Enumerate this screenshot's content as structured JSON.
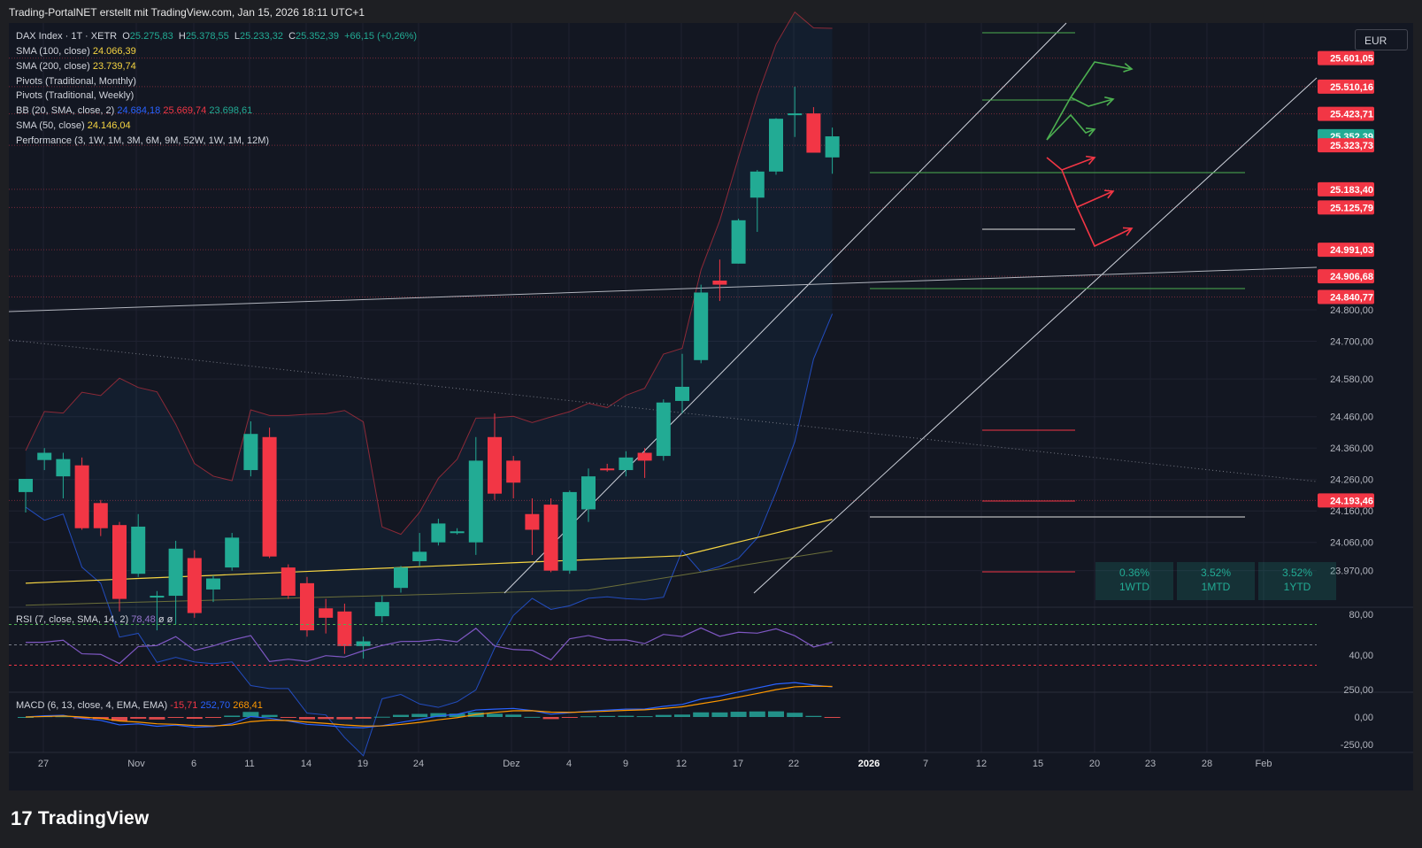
{
  "header": {
    "caption": "Trading-PortalNET erstellt mit TradingView.com, Jan 15, 2026 18:11 UTC+1"
  },
  "currency": "EUR",
  "brand": {
    "logo_text": "17",
    "name": "TradingView"
  },
  "legend": {
    "symbol": "DAX Index · 1T · XETR",
    "o_label": "O",
    "o_value": "25.275,83",
    "h_label": "H",
    "h_value": "25.378,55",
    "l_label": "L",
    "l_value": "25.233,32",
    "c_label": "C",
    "c_value": "25.352,39",
    "change": "+66,15 (+0,26%)",
    "sma100_label": "SMA (100, close)",
    "sma100_value": "24.066,39",
    "sma200_label": "SMA (200, close)",
    "sma200_value": "23.739,74",
    "pivots_monthly": "Pivots (Traditional, Monthly)",
    "pivots_weekly": "Pivots (Traditional, Weekly)",
    "bb_label": "BB (20, SMA, close, 2)",
    "bb_basis": "24.684,18",
    "bb_upper": "25.669,74",
    "bb_lower": "23.698,61",
    "sma50_label": "SMA (50, close)",
    "sma50_value": "24.146,04",
    "performance_label": "Performance (3, 1W, 1M, 3M, 6M, 9M, 52W, 1W, 1M, 12M)"
  },
  "performance": [
    {
      "value": "0.36%",
      "label": "1WTD"
    },
    {
      "value": "3.52%",
      "label": "1MTD"
    },
    {
      "value": "3.52%",
      "label": "1YTD"
    }
  ],
  "rsi_legend": {
    "label": "RSI (7, close, SMA, 14, 2)",
    "value": "78,48",
    "extra": "ø ø"
  },
  "macd_legend": {
    "label": "MACD (6, 13, close, 4, EMA, EMA)",
    "hist": "-15,71",
    "macd": "252,70",
    "signal": "268,41"
  },
  "price_tags": [
    {
      "text": "25.601,05",
      "value": 25601.05,
      "color": "#f23645"
    },
    {
      "text": "25.510,16",
      "value": 25510.16,
      "color": "#f23645"
    },
    {
      "text": "25.423,71",
      "value": 25423.71,
      "color": "#f23645"
    },
    {
      "text": "25.352,39",
      "value": 25352.39,
      "color": "#22ab94"
    },
    {
      "text": "25.323,73",
      "value": 25323.73,
      "color": "#f23645"
    },
    {
      "text": "25.183,40",
      "value": 25183.4,
      "color": "#f23645"
    },
    {
      "text": "25.125,79",
      "value": 25125.79,
      "color": "#f23645"
    },
    {
      "text": "24.991,03",
      "value": 24991.03,
      "color": "#f23645"
    },
    {
      "text": "24.906,68",
      "value": 24906.68,
      "color": "#f23645"
    },
    {
      "text": "24.840,77",
      "value": 24840.77,
      "color": "#f23645"
    },
    {
      "text": "24.193,46",
      "value": 24193.46,
      "color": "#f23645"
    }
  ],
  "chart_data": {
    "type": "candlestick",
    "price_axis_ticks": [
      {
        "text": "24.800,00",
        "value": 24800
      },
      {
        "text": "24.700,00",
        "value": 24700
      },
      {
        "text": "24.580,00",
        "value": 24580
      },
      {
        "text": "24.460,00",
        "value": 24460
      },
      {
        "text": "24.360,00",
        "value": 24360
      },
      {
        "text": "24.260,00",
        "value": 24260
      },
      {
        "text": "24.160,00",
        "value": 24160
      },
      {
        "text": "24.060,00",
        "value": 24060
      },
      {
        "text": "23.970,00",
        "value": 23970
      }
    ],
    "time_axis": [
      "27",
      "Nov",
      "6",
      "11",
      "14",
      "19",
      "24",
      "Dez",
      "4",
      "9",
      "12",
      "17",
      "22",
      "2026",
      "7",
      "12",
      "15",
      "20",
      "23",
      "28",
      "Feb"
    ],
    "time_axis_bold": [
      "2026"
    ],
    "candles": [
      {
        "o": 24220,
        "h": 24262,
        "l": 24155,
        "c": 24262
      },
      {
        "o": 24322,
        "h": 24360,
        "l": 24290,
        "c": 24345
      },
      {
        "o": 24270,
        "h": 24345,
        "l": 24200,
        "c": 24325
      },
      {
        "o": 24305,
        "h": 24330,
        "l": 24100,
        "c": 24105
      },
      {
        "o": 24185,
        "h": 24195,
        "l": 24080,
        "c": 24105
      },
      {
        "o": 24115,
        "h": 24125,
        "l": 23840,
        "c": 23880
      },
      {
        "o": 23960,
        "h": 24150,
        "l": 23950,
        "c": 24110
      },
      {
        "o": 23885,
        "h": 23905,
        "l": 23780,
        "c": 23890
      },
      {
        "o": 23890,
        "h": 24065,
        "l": 23800,
        "c": 24040
      },
      {
        "o": 24010,
        "h": 24035,
        "l": 23820,
        "c": 23835
      },
      {
        "o": 23910,
        "h": 23955,
        "l": 23870,
        "c": 23945
      },
      {
        "o": 23980,
        "h": 24090,
        "l": 23970,
        "c": 24075
      },
      {
        "o": 24290,
        "h": 24445,
        "l": 24270,
        "c": 24405
      },
      {
        "o": 24395,
        "h": 24425,
        "l": 24010,
        "c": 24015
      },
      {
        "o": 23980,
        "h": 23990,
        "l": 23880,
        "c": 23890
      },
      {
        "o": 23930,
        "h": 23950,
        "l": 23760,
        "c": 23780
      },
      {
        "o": 23850,
        "h": 23880,
        "l": 23770,
        "c": 23820
      },
      {
        "o": 23840,
        "h": 23865,
        "l": 23705,
        "c": 23730
      },
      {
        "o": 23730,
        "h": 23760,
        "l": 23690,
        "c": 23745
      },
      {
        "o": 23825,
        "h": 23890,
        "l": 23805,
        "c": 23870
      },
      {
        "o": 23915,
        "h": 23985,
        "l": 23900,
        "c": 23980
      },
      {
        "o": 24000,
        "h": 24090,
        "l": 23985,
        "c": 24030
      },
      {
        "o": 24060,
        "h": 24135,
        "l": 24050,
        "c": 24120
      },
      {
        "o": 24095,
        "h": 24105,
        "l": 24085,
        "c": 24095
      },
      {
        "o": 24060,
        "h": 24395,
        "l": 24020,
        "c": 24320
      },
      {
        "o": 24395,
        "h": 24470,
        "l": 24195,
        "c": 24215
      },
      {
        "o": 24320,
        "h": 24335,
        "l": 24200,
        "c": 24250
      },
      {
        "o": 24150,
        "h": 24200,
        "l": 24020,
        "c": 24100
      },
      {
        "o": 24180,
        "h": 24200,
        "l": 23965,
        "c": 23970
      },
      {
        "o": 23970,
        "h": 24225,
        "l": 23960,
        "c": 24220
      },
      {
        "o": 24165,
        "h": 24295,
        "l": 24125,
        "c": 24270
      },
      {
        "o": 24295,
        "h": 24310,
        "l": 24285,
        "c": 24290
      },
      {
        "o": 24290,
        "h": 24350,
        "l": 24270,
        "c": 24330
      },
      {
        "o": 24345,
        "h": 24360,
        "l": 24265,
        "c": 24320
      },
      {
        "o": 24335,
        "h": 24515,
        "l": 24320,
        "c": 24505
      },
      {
        "o": 24510,
        "h": 24660,
        "l": 24470,
        "c": 24555
      },
      {
        "o": 24640,
        "h": 24880,
        "l": 24630,
        "c": 24855
      },
      {
        "o": 24893,
        "h": 24960,
        "l": 24828,
        "c": 24880
      },
      {
        "o": 24947,
        "h": 25090,
        "l": 24947,
        "c": 25085
      },
      {
        "o": 25157,
        "h": 25245,
        "l": 25048,
        "c": 25240
      },
      {
        "o": 25240,
        "h": 25410,
        "l": 25230,
        "c": 25408
      },
      {
        "o": 25420,
        "h": 25510,
        "l": 25350,
        "c": 25425
      },
      {
        "o": 25425,
        "h": 25445,
        "l": 25305,
        "c": 25300
      },
      {
        "o": 25285,
        "h": 25380,
        "l": 25233,
        "c": 25352
      }
    ],
    "rsi_ticks": [
      {
        "text": "80,00",
        "value": 80
      },
      {
        "text": "40,00",
        "value": 40
      }
    ],
    "macd_ticks": [
      {
        "text": "250,00",
        "value": 250
      },
      {
        "text": "0,00",
        "value": 0
      },
      {
        "text": "-250,00",
        "value": -250
      }
    ]
  },
  "colors": {
    "up": "#22ab94",
    "down": "#f23645",
    "background": "#131722",
    "sma": "#f5d442",
    "bb_lower": "#2962ff",
    "bb_upper": "#f23645",
    "rsi": "#7e57c2",
    "macd": "#2962ff",
    "signal": "#ff9800"
  }
}
